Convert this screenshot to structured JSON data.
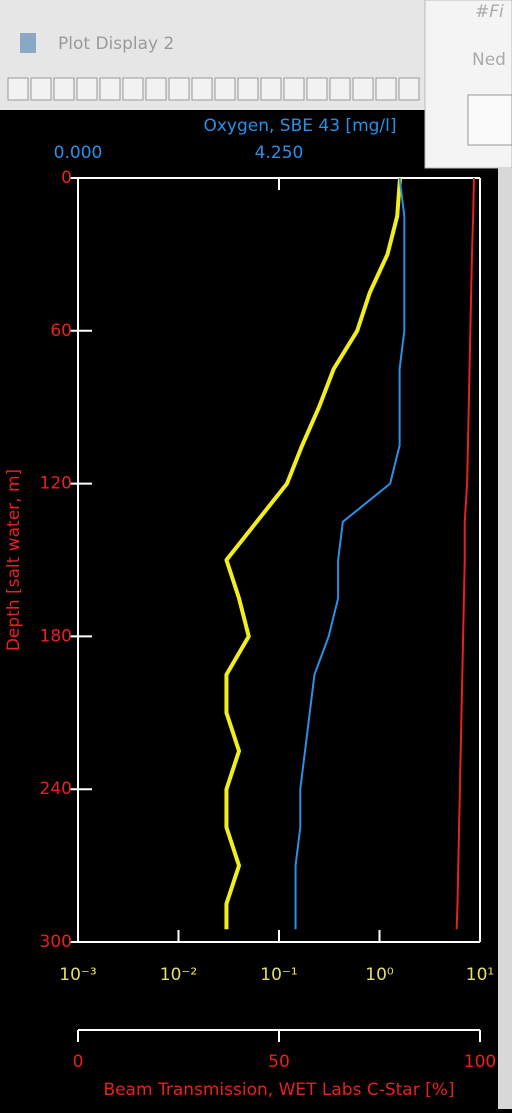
{
  "window": {
    "title": "Plot Display 2",
    "behind_texts": [
      "#Fi",
      "Ned"
    ]
  },
  "chart_data": {
    "type": "profile",
    "depth_label": "Depth [salt water, m]",
    "depth_color": "#e8201e",
    "ylim": [
      0,
      300
    ],
    "yticks": [
      0,
      60,
      120,
      180,
      240,
      300
    ],
    "depth": [
      0,
      15,
      30,
      45,
      60,
      75,
      90,
      105,
      120,
      135,
      150,
      165,
      180,
      195,
      210,
      225,
      240,
      255,
      270,
      285,
      295
    ],
    "axes": {
      "oxygen": {
        "side": "top",
        "label": "Oxygen, SBE 43 [mg/l]",
        "color": "#2b8fe6",
        "lim": [
          0,
          8.5
        ],
        "log": false,
        "ticks": [
          {
            "value": 0,
            "label": "0.000"
          },
          {
            "value": 4.25,
            "label": "4.250"
          }
        ]
      },
      "fluor": {
        "side": "bottom",
        "color": "#e3df6a",
        "lim": [
          0.001,
          10
        ],
        "log": true,
        "ticks": [
          {
            "value": 0.001,
            "label": "10⁻³"
          },
          {
            "value": 0.01,
            "label": "10⁻²"
          },
          {
            "value": 0.1,
            "label": "10⁻¹"
          },
          {
            "value": 1,
            "label": "10⁰"
          },
          {
            "value": 10,
            "label": "10¹"
          }
        ]
      },
      "beam": {
        "side": "bottom2",
        "label": "Beam Transmission, WET Labs C-Star [%]",
        "color": "#e8201e",
        "lim": [
          0,
          100
        ],
        "log": false,
        "ticks": [
          0,
          50,
          100
        ]
      }
    },
    "series": [
      {
        "axis": "fluor",
        "color": "#f2ee1c",
        "width": 4,
        "values": [
          1.6,
          1.5,
          1.2,
          0.8,
          0.6,
          0.35,
          0.25,
          0.17,
          0.12,
          0.06,
          0.03,
          0.04,
          0.05,
          0.03,
          0.03,
          0.04,
          0.03,
          0.03,
          0.04,
          0.03,
          0.03
        ]
      },
      {
        "axis": "oxygen",
        "color": "#2b8fe6",
        "width": 2,
        "values": [
          6.8,
          6.9,
          6.9,
          6.9,
          6.9,
          6.8,
          6.8,
          6.8,
          6.6,
          5.6,
          5.5,
          5.5,
          5.3,
          5.0,
          4.9,
          4.8,
          4.7,
          4.7,
          4.6,
          4.6,
          4.6
        ]
      },
      {
        "axis": "beam",
        "color": "#e8201e",
        "width": 2,
        "values": [
          98.5,
          98.3,
          98,
          97.8,
          97.6,
          97.4,
          97.2,
          97,
          96.8,
          96.2,
          96.2,
          96,
          95.8,
          95.6,
          95.4,
          95.2,
          95,
          94.8,
          94.6,
          94.4,
          94.2
        ]
      }
    ]
  }
}
